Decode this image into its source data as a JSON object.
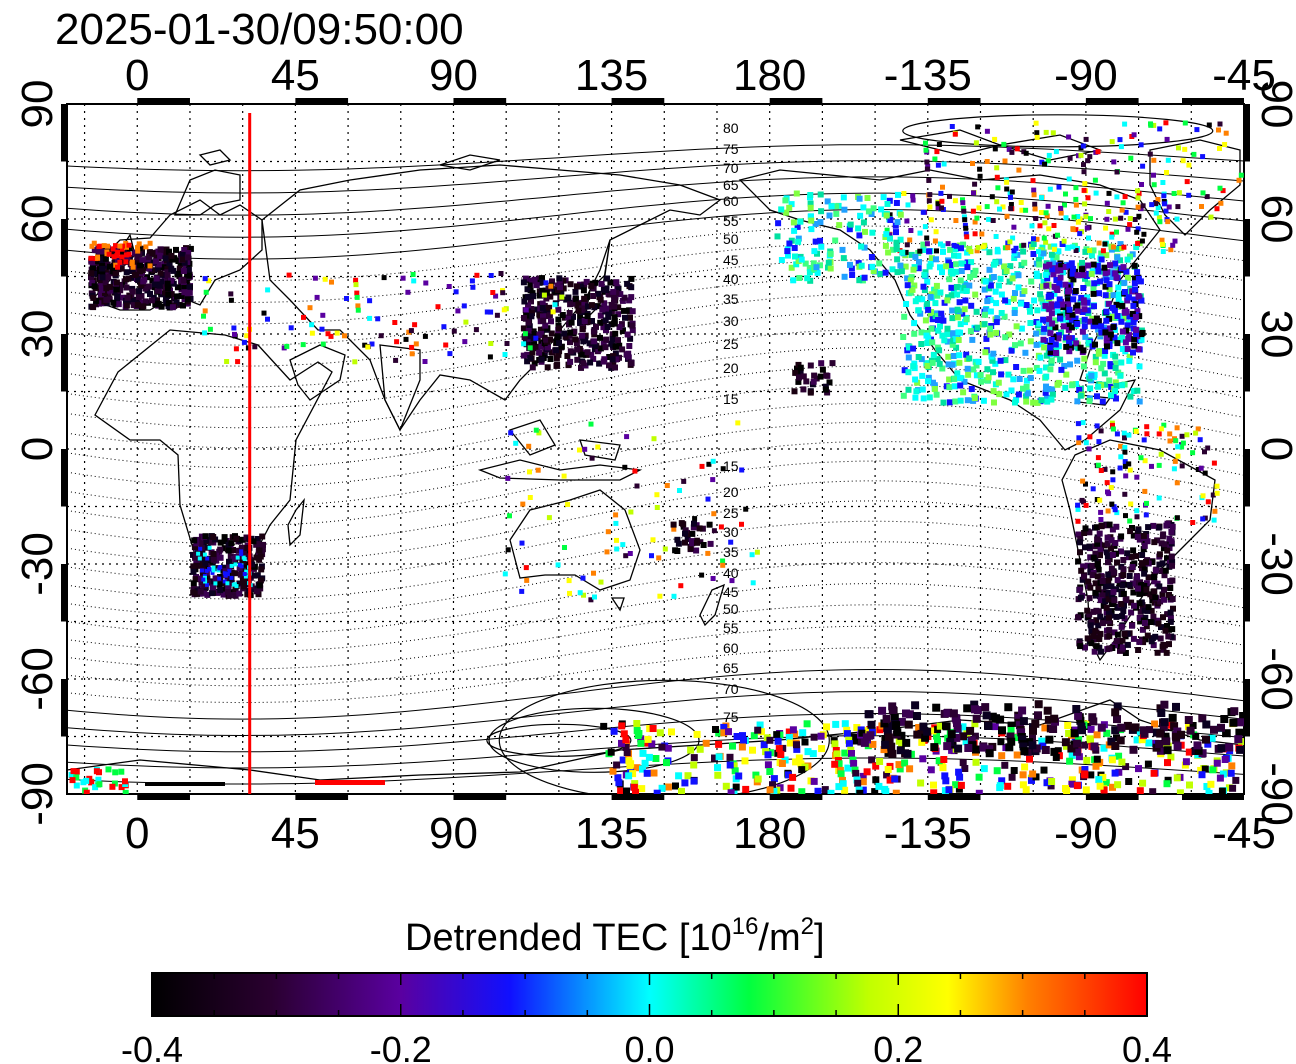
{
  "timestamp": "2025-01-30/09:50:00",
  "lon_labels_top": [
    "0",
    "45",
    "90",
    "135",
    "180",
    "-135",
    "-90",
    "-45"
  ],
  "lon_labels_bottom": [
    "0",
    "45",
    "90",
    "135",
    "180",
    "-135",
    "-90",
    "-45"
  ],
  "lat_labels_left": [
    "90",
    "60",
    "30",
    "0",
    "-30",
    "-60",
    "-90"
  ],
  "lat_labels_right": [
    "90",
    "60",
    "30",
    "0",
    "-30",
    "-60",
    "-90"
  ],
  "contour_labels_north": [
    "80",
    "75",
    "70",
    "65",
    "60",
    "55",
    "50",
    "45",
    "40",
    "35",
    "30",
    "25",
    "20",
    "15"
  ],
  "contour_labels_south": [
    "15",
    "20",
    "25",
    "30",
    "35",
    "40",
    "45",
    "50",
    "55",
    "60",
    "65",
    "70",
    "75"
  ],
  "colorbar": {
    "title_main": "Detrended TEC  [10",
    "title_sup": "16",
    "title_end": "/m",
    "title_sup2": "2",
    "title_close": "]",
    "tick_labels": [
      "-0.4",
      "-0.2",
      "0.0",
      "0.2",
      "0.4"
    ],
    "min": -0.4,
    "max": 0.4
  },
  "terminator_longitude": 32,
  "map_extent": {
    "lon_min": -20,
    "lon_max": 315,
    "lat_min": -90,
    "lat_max": 90
  },
  "colors": {
    "terminator": "#ff0000",
    "frame": "#000000"
  }
}
